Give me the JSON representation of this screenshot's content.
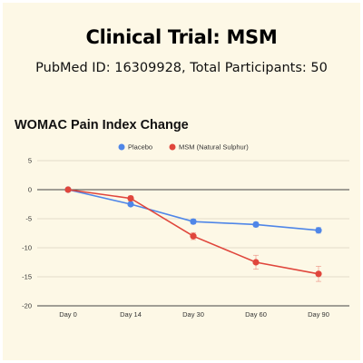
{
  "header": {
    "title": "Clinical Trial: MSM",
    "subtitle": "PubMed ID: 16309928, Total Participants: 50"
  },
  "chart_data": {
    "type": "line",
    "title": "WOMAC Pain Index Change",
    "xlabel": "",
    "ylabel": "",
    "categories": [
      "Day 0",
      "Day 14",
      "Day 30",
      "Day 60",
      "Day 90"
    ],
    "ylim": [
      -20,
      5
    ],
    "yticks": [
      5,
      0,
      -5,
      -10,
      -15,
      -20
    ],
    "legend_position": "top-center",
    "grid": true,
    "series": [
      {
        "name": "Placebo",
        "color": "#4f86e8",
        "values": [
          0,
          -2.5,
          -5.5,
          -6,
          -7
        ],
        "errors": [
          0,
          0.3,
          0.4,
          0.4,
          0.5
        ]
      },
      {
        "name": "MSM (Natural Sulphur)",
        "color": "#e0463c",
        "values": [
          0,
          -1.5,
          -8,
          -12.5,
          -14.5
        ],
        "errors": [
          0,
          0.4,
          0.6,
          1.2,
          1.3
        ]
      }
    ]
  }
}
